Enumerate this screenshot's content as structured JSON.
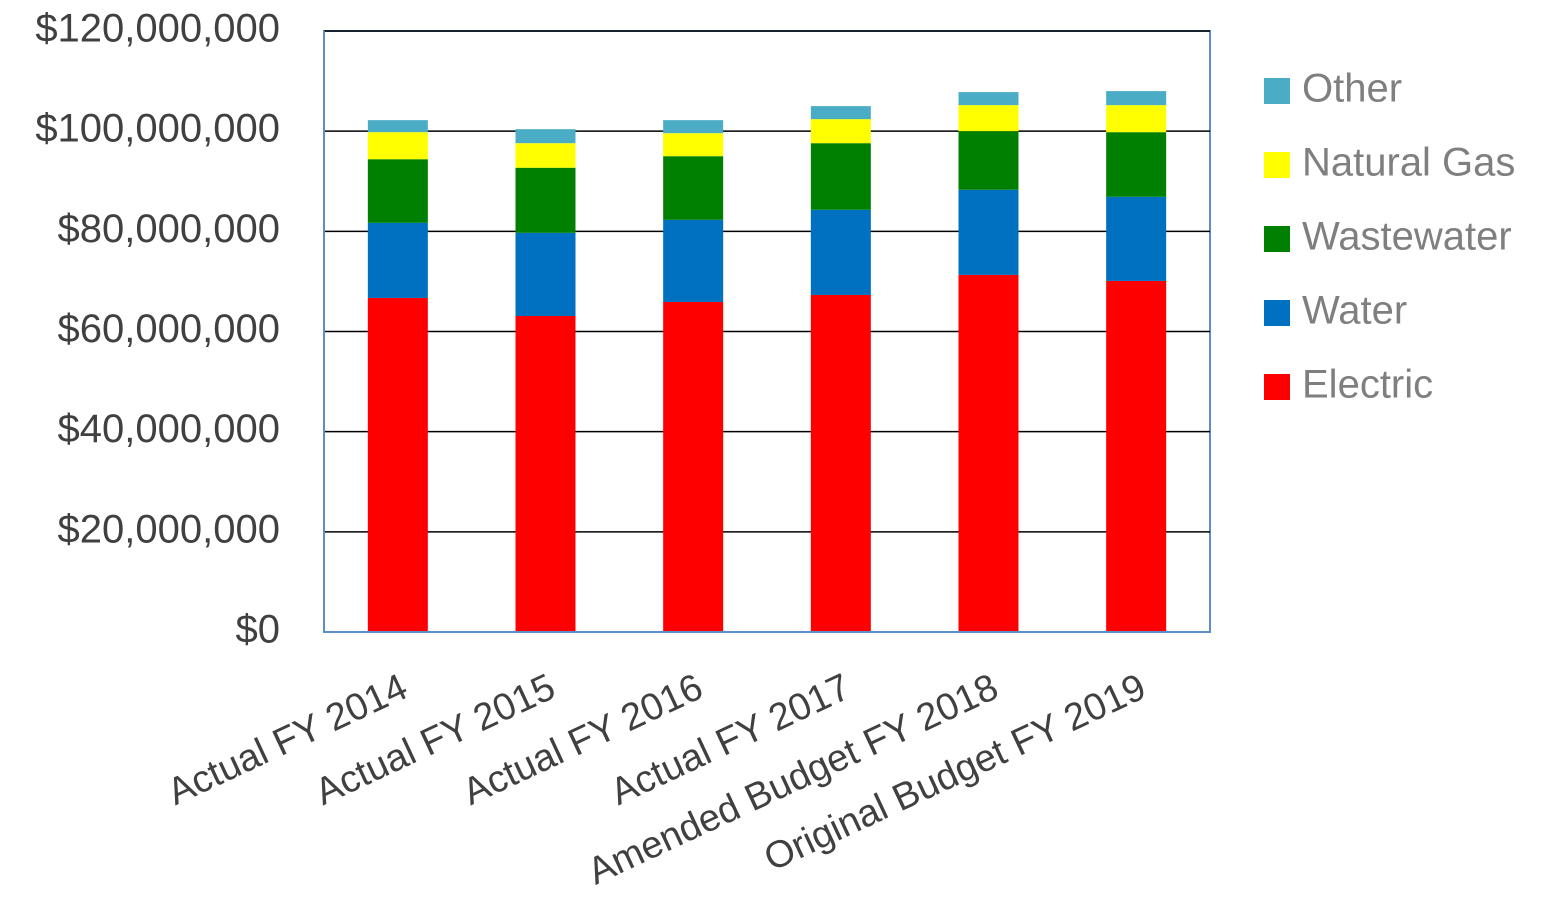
{
  "chart_data": {
    "type": "stacked_bar",
    "categories": [
      "Actual FY 2014",
      "Actual FY 2015",
      "Actual FY 2016",
      "Actual FY 2017",
      "Amended Budget FY 2018",
      "Original Budget FY 2019"
    ],
    "series": [
      {
        "name": "Electric",
        "color": "#ff0000",
        "values": [
          66700000,
          63100000,
          65900000,
          67300000,
          71300000,
          70100000
        ]
      },
      {
        "name": "Water",
        "color": "#0070c0",
        "values": [
          15000000,
          16600000,
          16400000,
          17000000,
          17000000,
          16800000
        ]
      },
      {
        "name": "Wastewater",
        "color": "#008000",
        "values": [
          12700000,
          13000000,
          12700000,
          13300000,
          11700000,
          12900000
        ]
      },
      {
        "name": "Natural Gas",
        "color": "#ffff00",
        "values": [
          5400000,
          4900000,
          4600000,
          4800000,
          5200000,
          5400000
        ]
      },
      {
        "name": "Other",
        "color": "#4bacc6",
        "values": [
          2400000,
          2800000,
          2600000,
          2600000,
          2600000,
          2800000
        ]
      }
    ],
    "ylim": [
      0,
      120000000
    ],
    "yticks": [
      {
        "value": 0,
        "label": "$0"
      },
      {
        "value": 20000000,
        "label": "$20,000,000"
      },
      {
        "value": 40000000,
        "label": "$40,000,000"
      },
      {
        "value": 60000000,
        "label": "$60,000,000"
      },
      {
        "value": 80000000,
        "label": "$80,000,000"
      },
      {
        "value": 100000000,
        "label": "$100,000,000"
      },
      {
        "value": 120000000,
        "label": "$120,000,000"
      }
    ],
    "grid": true,
    "legend": "right"
  }
}
